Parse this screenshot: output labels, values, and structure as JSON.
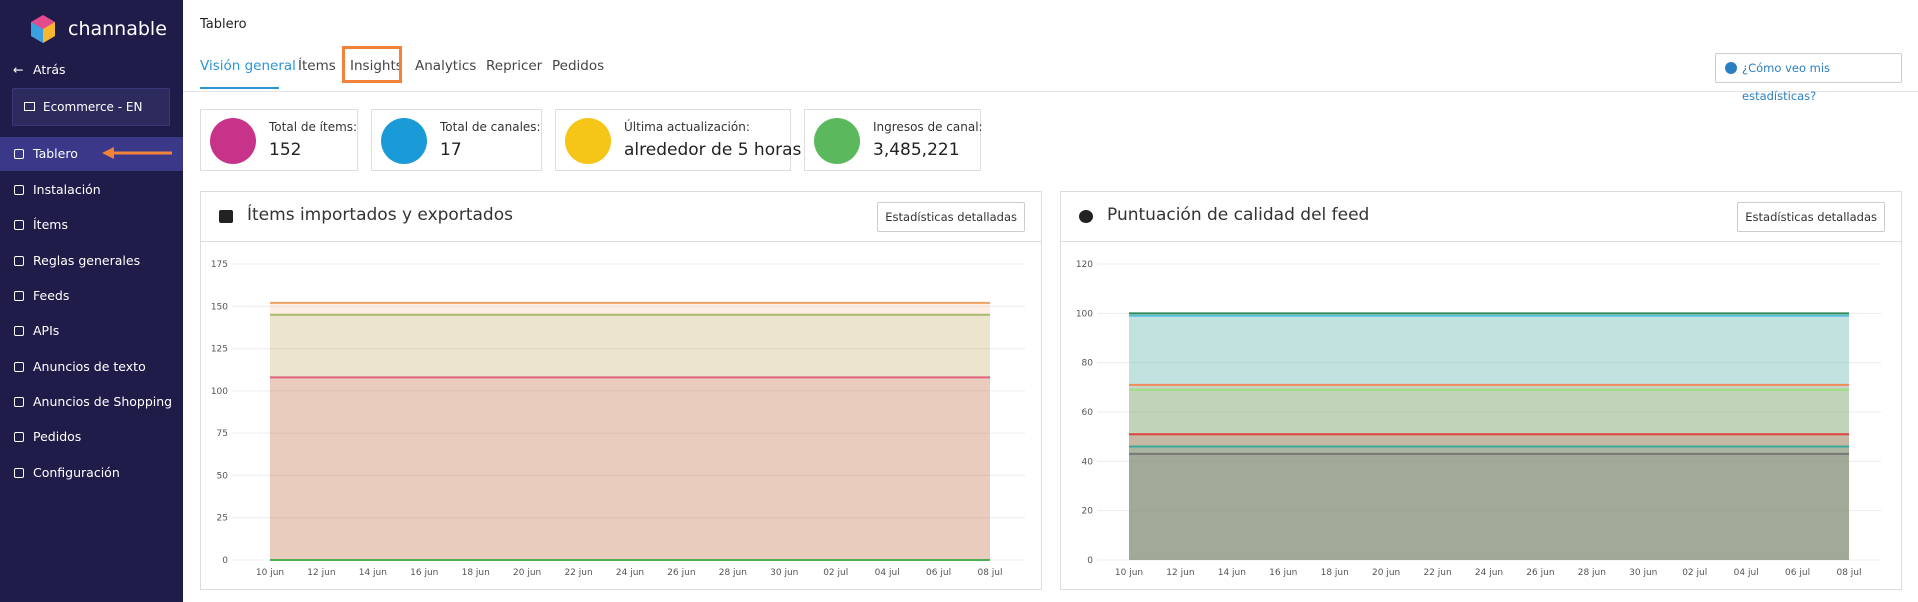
{
  "sidebar": {
    "logo": "channable",
    "back": "Atrás",
    "project": "Ecommerce - EN",
    "items": [
      "Tablero",
      "Instalación",
      "Ítems",
      "Reglas generales",
      "Feeds",
      "APIs",
      "Anuncios de texto",
      "Anuncios de Shopping",
      "Pedidos",
      "Configuración"
    ]
  },
  "header": {
    "title": "Tablero",
    "tabs": [
      "Visión general",
      "Ítems",
      "Insights",
      "Analytics",
      "Repricer",
      "Pedidos"
    ],
    "help": "¿Cómo veo mis estadísticas?"
  },
  "stats": [
    {
      "label": "Total de ítems:",
      "value": "152"
    },
    {
      "label": "Total de canales:",
      "value": "17"
    },
    {
      "label": "Última actualización:",
      "value": "alrededor de 5 horas"
    },
    {
      "label": "Ingresos de canal:",
      "value": "3,485,221"
    }
  ],
  "panels": [
    {
      "button": "Estadísticas detalladas"
    },
    {
      "button": "Estadísticas detalladas"
    }
  ],
  "chart_data": [
    {
      "type": "area",
      "title": "Ítems importados y exportados",
      "categories": [
        "10 jun",
        "12 jun",
        "14 jun",
        "16 jun",
        "18 jun",
        "20 jun",
        "22 jun",
        "24 jun",
        "26 jun",
        "28 jun",
        "30 jun",
        "02 jul",
        "04 jul",
        "06 jul",
        "08 jul"
      ],
      "ylim": [
        0,
        175
      ],
      "yticks": [
        0,
        25,
        50,
        75,
        100,
        125,
        150,
        175
      ],
      "grid": true,
      "series": [
        {
          "color": "#f0a060",
          "values": [
            152,
            152,
            152,
            152,
            152,
            152,
            152,
            152,
            152,
            152,
            152,
            152,
            152,
            152,
            152
          ]
        },
        {
          "color": "#a9b86c",
          "values": [
            145,
            145,
            145,
            145,
            145,
            145,
            145,
            145,
            145,
            145,
            145,
            145,
            145,
            145,
            145
          ]
        },
        {
          "color": "#e0607e",
          "values": [
            108,
            108,
            108,
            108,
            108,
            108,
            108,
            108,
            108,
            108,
            108,
            108,
            108,
            108,
            108
          ]
        },
        {
          "color": "#4caf50",
          "values": [
            0,
            0,
            0,
            0,
            0,
            0,
            0,
            0,
            0,
            0,
            0,
            0,
            0,
            0,
            0
          ]
        }
      ]
    },
    {
      "type": "area",
      "title": "Puntuación de calidad del feed",
      "categories": [
        "10 jun",
        "12 jun",
        "14 jun",
        "16 jun",
        "18 jun",
        "20 jun",
        "22 jun",
        "24 jun",
        "26 jun",
        "28 jun",
        "30 jun",
        "02 jul",
        "04 jul",
        "06 jul",
        "08 jul"
      ],
      "ylim": [
        0,
        120
      ],
      "yticks": [
        0,
        20,
        40,
        60,
        80,
        100,
        120
      ],
      "grid": true,
      "series": [
        {
          "color": "#2e8b57",
          "values": [
            100,
            100,
            100,
            100,
            100,
            100,
            100,
            100,
            100,
            100,
            100,
            100,
            100,
            100,
            100
          ]
        },
        {
          "color": "#5bc0de",
          "values": [
            99,
            99,
            99,
            99,
            99,
            99,
            99,
            99,
            99,
            99,
            99,
            99,
            99,
            99,
            99
          ]
        },
        {
          "color": "#f08c5a",
          "values": [
            71,
            71,
            71,
            71,
            71,
            71,
            71,
            71,
            71,
            71,
            71,
            71,
            71,
            71,
            71
          ]
        },
        {
          "color": "#9be07a",
          "values": [
            69,
            69,
            69,
            69,
            69,
            69,
            69,
            69,
            69,
            69,
            69,
            69,
            69,
            69,
            69
          ]
        },
        {
          "color": "#e04040",
          "values": [
            51,
            51,
            51,
            51,
            51,
            51,
            51,
            51,
            51,
            51,
            51,
            51,
            51,
            51,
            51
          ]
        },
        {
          "color": "#3aa89a",
          "values": [
            46,
            46,
            46,
            46,
            46,
            46,
            46,
            46,
            46,
            46,
            46,
            46,
            46,
            46,
            46
          ]
        },
        {
          "color": "#777777",
          "values": [
            43,
            43,
            43,
            43,
            43,
            43,
            43,
            43,
            43,
            43,
            43,
            43,
            43,
            43,
            43
          ]
        }
      ]
    }
  ]
}
